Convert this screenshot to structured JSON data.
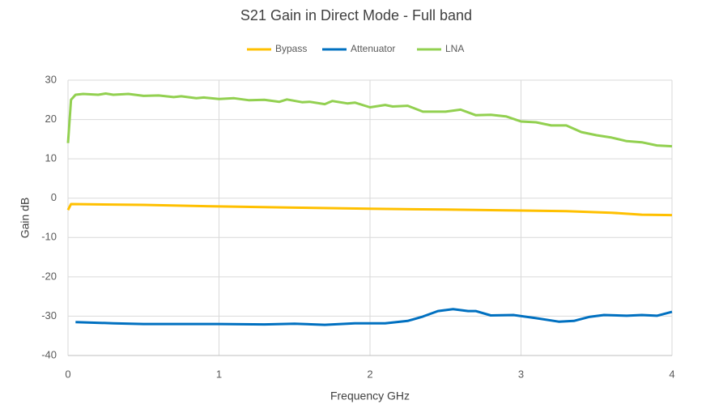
{
  "chart_data": {
    "type": "line",
    "title": "S21 Gain in Direct Mode - Full band",
    "x_label": "Frequency GHz",
    "y_label": "Gain dB",
    "xlim": [
      0,
      4
    ],
    "xticks": [
      0,
      1,
      2,
      3,
      4
    ],
    "ylim": [
      -40,
      30
    ],
    "yticks": [
      -40,
      -30,
      -20,
      -10,
      0,
      10,
      20,
      30
    ],
    "grid": true,
    "legend": "top",
    "series": [
      {
        "name": "Bypass",
        "color": "#FFC000",
        "x": [
          0,
          0.02,
          0.5,
          1,
          1.5,
          2,
          2.5,
          2.9,
          3.3,
          3.6,
          3.8,
          4
        ],
        "values": [
          -3,
          -1.5,
          -1.7,
          -2.1,
          -2.4,
          -2.7,
          -2.9,
          -3.1,
          -3.3,
          -3.7,
          -4.2,
          -4.3
        ]
      },
      {
        "name": "Attenuator",
        "color": "#0070C0",
        "x": [
          0.05,
          0.3,
          0.5,
          1,
          1.3,
          1.5,
          1.7,
          1.9,
          2.1,
          2.25,
          2.35,
          2.45,
          2.55,
          2.65,
          2.7,
          2.8,
          2.95,
          3.1,
          3.25,
          3.35,
          3.45,
          3.55,
          3.7,
          3.8,
          3.9,
          4
        ],
        "values": [
          -31.5,
          -31.8,
          -32,
          -32,
          -32.1,
          -31.9,
          -32.2,
          -31.8,
          -31.8,
          -31.2,
          -30.1,
          -28.7,
          -28.2,
          -28.7,
          -28.7,
          -29.8,
          -29.7,
          -30.5,
          -31.4,
          -31.2,
          -30.2,
          -29.7,
          -29.9,
          -29.7,
          -29.9,
          -28.9
        ]
      },
      {
        "name": "LNA",
        "color": "#92D050",
        "x": [
          0,
          0.02,
          0.05,
          0.1,
          0.2,
          0.25,
          0.3,
          0.4,
          0.5,
          0.6,
          0.7,
          0.75,
          0.85,
          0.9,
          1,
          1.1,
          1.2,
          1.3,
          1.4,
          1.45,
          1.55,
          1.6,
          1.7,
          1.75,
          1.85,
          1.9,
          2,
          2.1,
          2.15,
          2.25,
          2.35,
          2.5,
          2.6,
          2.7,
          2.8,
          2.9,
          3,
          3.1,
          3.2,
          3.3,
          3.4,
          3.5,
          3.6,
          3.7,
          3.8,
          3.9,
          4
        ],
        "values": [
          14,
          25,
          26.3,
          26.5,
          26.3,
          26.6,
          26.3,
          26.5,
          26,
          26.1,
          25.7,
          25.9,
          25.4,
          25.6,
          25.2,
          25.4,
          24.9,
          25,
          24.5,
          25.1,
          24.4,
          24.5,
          23.9,
          24.7,
          24.1,
          24.3,
          23.1,
          23.7,
          23.3,
          23.5,
          22,
          22,
          22.5,
          21.1,
          21.2,
          20.8,
          19.5,
          19.3,
          18.5,
          18.5,
          16.8,
          16,
          15.4,
          14.5,
          14.2,
          13.4,
          13.2
        ]
      }
    ]
  }
}
